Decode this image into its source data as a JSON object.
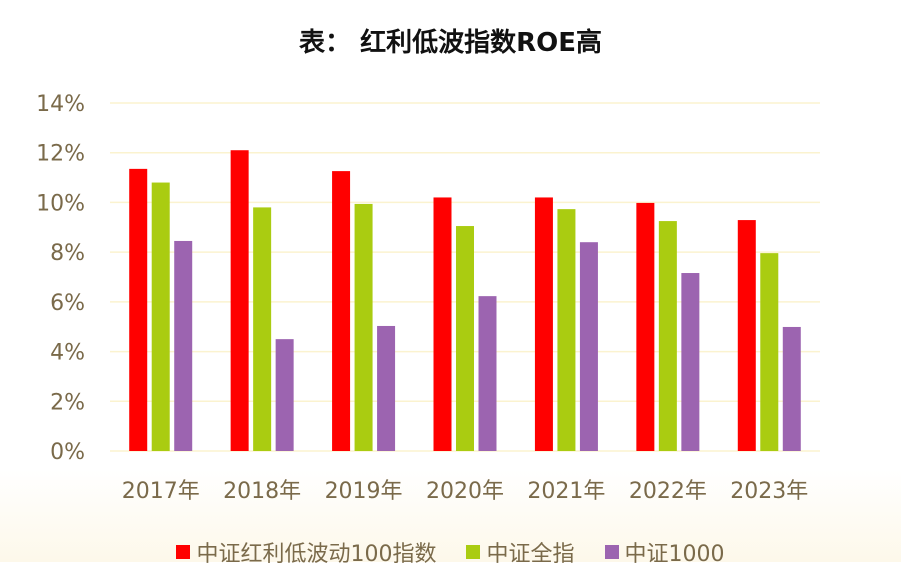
{
  "title": "表： 红利低波指数ROE高",
  "chart_data": {
    "type": "bar",
    "title": "表： 红利低波指数ROE高",
    "categories": [
      "2017年",
      "2018年",
      "2019年",
      "2020年",
      "2021年",
      "2022年",
      "2023年"
    ],
    "series": [
      {
        "name": "中证红利低波动100指数",
        "color": "#ff0000",
        "values": [
          11.35,
          12.1,
          11.26,
          10.2,
          10.2,
          9.98,
          9.29
        ]
      },
      {
        "name": "中证全指",
        "color": "#aacc11",
        "values": [
          10.8,
          9.8,
          9.94,
          9.05,
          9.73,
          9.25,
          7.96
        ]
      },
      {
        "name": "中证1000",
        "color": "#9c64b0",
        "values": [
          8.45,
          4.5,
          5.03,
          6.23,
          8.4,
          7.16,
          4.99
        ]
      }
    ],
    "yticks": [
      "0%",
      "2%",
      "4%",
      "6%",
      "8%",
      "10%",
      "12%",
      "14%"
    ],
    "ylim": [
      0,
      14
    ],
    "grid": true,
    "legend_position": "bottom"
  }
}
